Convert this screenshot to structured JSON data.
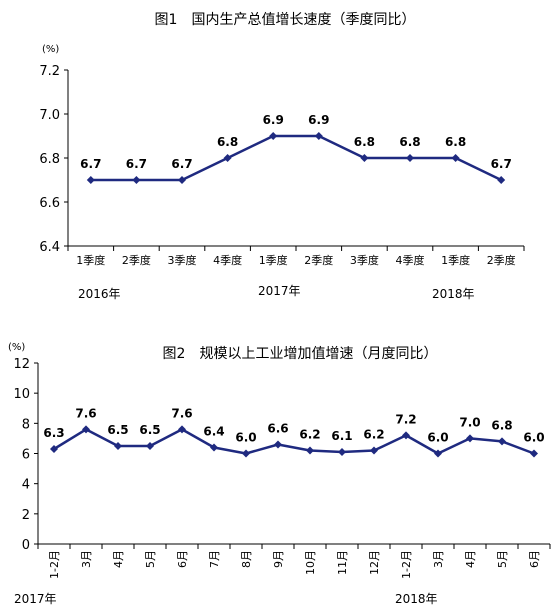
{
  "chart_data": [
    {
      "type": "line",
      "title": "图1　国内生产总值增长速度（季度同比）",
      "ylabel": "(%)",
      "ylim": [
        6.4,
        7.2
      ],
      "yticks": [
        "6.4",
        "6.6",
        "6.8",
        "7.0",
        "7.2"
      ],
      "categories": [
        "1季度",
        "2季度",
        "3季度",
        "4季度",
        "1季度",
        "2季度",
        "3季度",
        "4季度",
        "1季度",
        "2季度"
      ],
      "year_labels": [
        "2016年",
        "2017年",
        "2018年"
      ],
      "values": [
        6.7,
        6.7,
        6.7,
        6.8,
        6.9,
        6.9,
        6.8,
        6.8,
        6.8,
        6.7
      ],
      "line_color": "#1f2a80",
      "grid": false
    },
    {
      "type": "line",
      "title": "图2　规模以上工业增加值增速（月度同比）",
      "ylabel": "(%)",
      "ylim": [
        0,
        12
      ],
      "yticks": [
        "0",
        "2",
        "4",
        "6",
        "8",
        "10",
        "12"
      ],
      "categories": [
        "1-2月",
        "3月",
        "4月",
        "5月",
        "6月",
        "7月",
        "8月",
        "9月",
        "10月",
        "11月",
        "12月",
        "1-2月",
        "3月",
        "4月",
        "5月",
        "6月"
      ],
      "year_labels": [
        "2017年",
        "2018年"
      ],
      "values": [
        6.3,
        7.6,
        6.5,
        6.5,
        7.6,
        6.4,
        6.0,
        6.6,
        6.2,
        6.1,
        6.2,
        7.2,
        6.0,
        7.0,
        6.8,
        6.0
      ],
      "line_color": "#1f2a80",
      "grid": false
    }
  ]
}
